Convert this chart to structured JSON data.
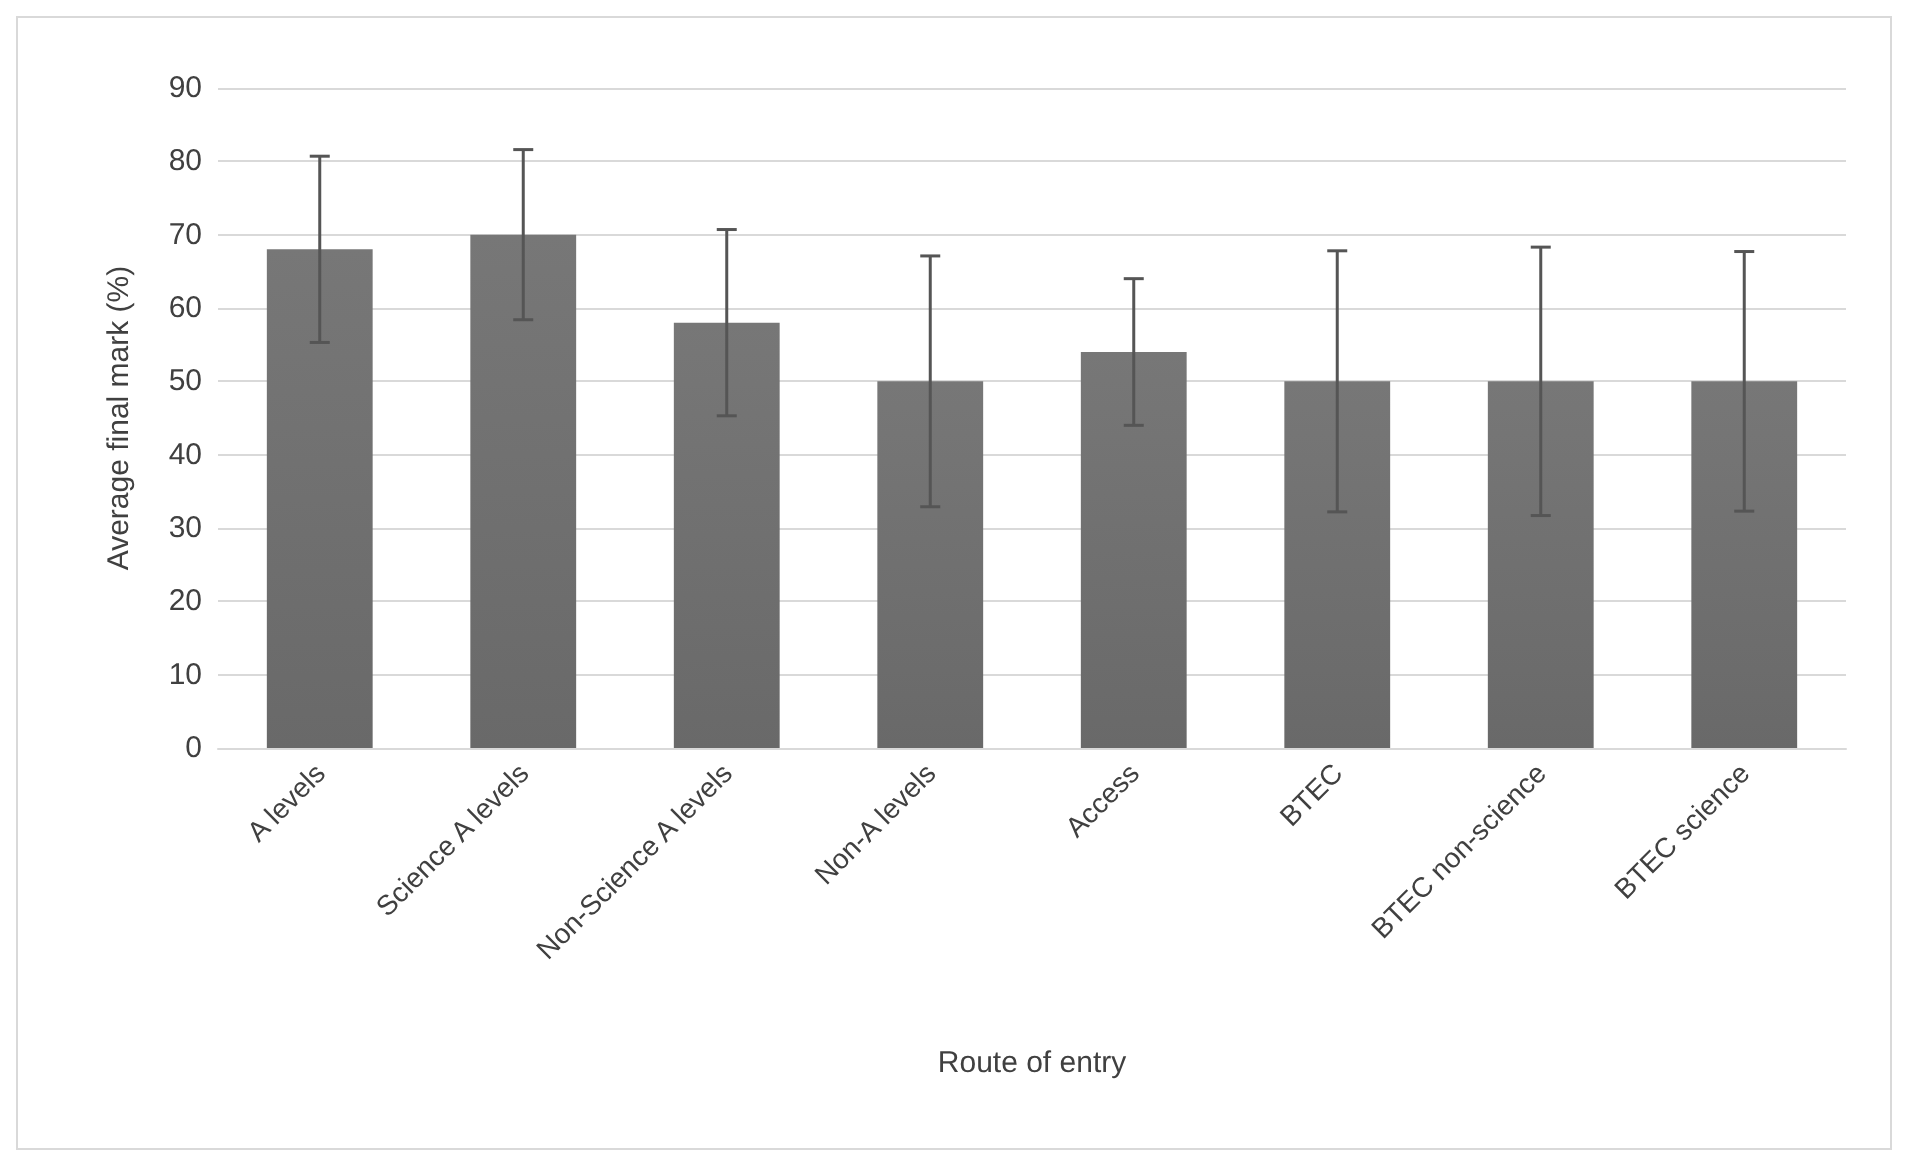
{
  "chart_data": {
    "type": "bar",
    "xlabel": "Route of entry",
    "ylabel": "Average final mark (%)",
    "categories": [
      "A levels",
      "Science A levels",
      "Non-Science A levels",
      "Non-A levels",
      "Access",
      "BTEC",
      "BTEC non-science",
      "BTEC science"
    ],
    "values": [
      68,
      70,
      58,
      50,
      54,
      50,
      50,
      50
    ],
    "errors": [
      12.7,
      11.6,
      12.7,
      17.1,
      10,
      17.8,
      18.3,
      17.7
    ],
    "color": "#606060",
    "ylim": [
      0,
      90
    ],
    "yticks": [
      0,
      10,
      20,
      30,
      40,
      50,
      60,
      70,
      80,
      90
    ],
    "grid": "y"
  }
}
